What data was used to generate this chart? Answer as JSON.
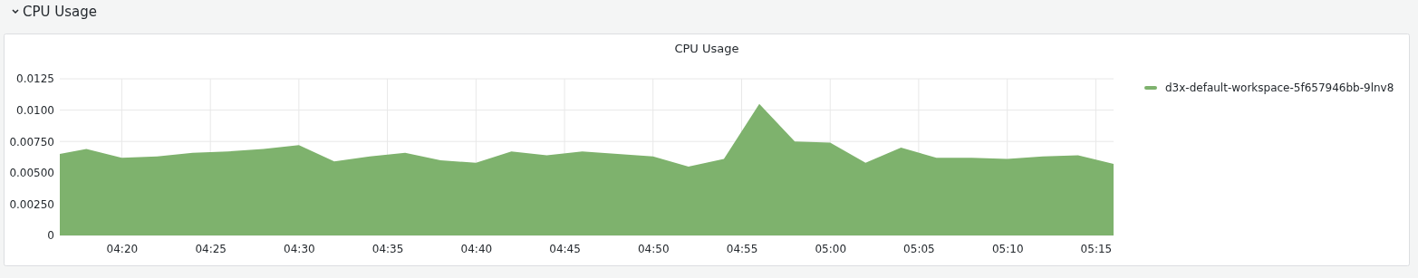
{
  "chart_data": {
    "type": "area",
    "title": "CPU Usage",
    "annotations": [
      "CPU Usage"
    ],
    "x": [
      4.275,
      4.3,
      4.3333,
      4.3667,
      4.4,
      4.4333,
      4.4667,
      4.5,
      4.5333,
      4.5667,
      4.6,
      4.6333,
      4.6667,
      4.7,
      4.7333,
      4.7667,
      4.8,
      4.8333,
      4.8667,
      4.9,
      4.9333,
      4.9667,
      5,
      5.0333,
      5.0667,
      5.1,
      5.1333,
      5.1667,
      5.2,
      5.2333,
      5.2667
    ],
    "series": [
      {
        "name": "d3x-default-workspace-5f657946bb-9lnv8",
        "color": "#7eb26d",
        "values": [
          0.0065,
          0.0069,
          0.0062,
          0.0063,
          0.0066,
          0.0067,
          0.0069,
          0.0072,
          0.0059,
          0.0063,
          0.0066,
          0.006,
          0.0058,
          0.0067,
          0.0064,
          0.0067,
          0.0065,
          0.0063,
          0.0055,
          0.0061,
          0.0105,
          0.0075,
          0.0074,
          0.0058,
          0.007,
          0.0062,
          0.0062,
          0.0061,
          0.0063,
          0.0064,
          0.0057
        ]
      }
    ],
    "xlim": [
      4.275,
      5.2667
    ],
    "xticks": [
      {
        "value": 4.3333,
        "label": "04:20"
      },
      {
        "value": 4.4167,
        "label": "04:25"
      },
      {
        "value": 4.5,
        "label": "04:30"
      },
      {
        "value": 4.5833,
        "label": "04:35"
      },
      {
        "value": 4.6667,
        "label": "04:40"
      },
      {
        "value": 4.75,
        "label": "04:45"
      },
      {
        "value": 4.8333,
        "label": "04:50"
      },
      {
        "value": 4.9167,
        "label": "04:55"
      },
      {
        "value": 5,
        "label": "05:00"
      },
      {
        "value": 5.0833,
        "label": "05:05"
      },
      {
        "value": 5.1667,
        "label": "05:10"
      },
      {
        "value": 5.25,
        "label": "05:15"
      }
    ],
    "ylim": [
      0,
      0.0125
    ],
    "yticks": [
      0,
      {
        "value": 0.0025,
        "label": "0.00250"
      },
      {
        "value": 0.005,
        "label": "0.00500"
      },
      {
        "value": 0.0075,
        "label": "0.00750"
      },
      {
        "value": 0.01,
        "label": "0.0100"
      },
      0.0125
    ],
    "grid": true,
    "legend": "right"
  }
}
